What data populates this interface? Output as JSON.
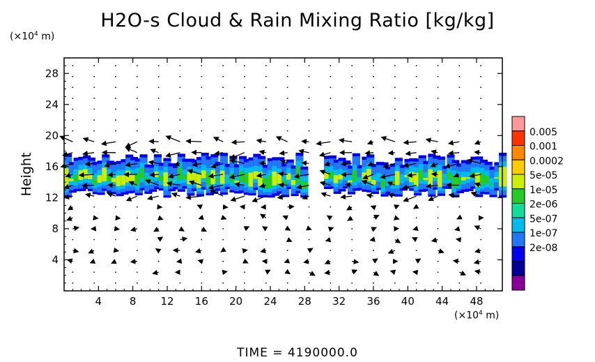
{
  "title": "H2O-s Cloud & Rain Mixing Ratio [kg/kg]",
  "y_unit": {
    "prefix": "(×10",
    "exp": "4",
    "suffix": " m)"
  },
  "x_unit": {
    "prefix": "(×10",
    "exp": "4",
    "suffix": " m)"
  },
  "time_label": "TIME  =  4190000.0",
  "chart_data": {
    "type": "heatmap",
    "title": "H2O-s Cloud & Rain Mixing Ratio [kg/kg]",
    "xlabel": "",
    "ylabel": "Height",
    "x_unit": "×10^4 m",
    "y_unit": "×10^4 m",
    "xlim": [
      0,
      51
    ],
    "ylim": [
      0,
      30
    ],
    "x_ticks": [
      "4",
      "8",
      "12",
      "16",
      "20",
      "24",
      "28",
      "32",
      "36",
      "40",
      "44",
      "48"
    ],
    "y_ticks": [
      "4",
      "8",
      "12",
      "16",
      "20",
      "24",
      "28"
    ],
    "colorbar": {
      "labels": [
        "0.005",
        "0.001",
        "0.0002",
        "5e-05",
        "1e-05",
        "2e-06",
        "5e-07",
        "1e-07",
        "2e-08"
      ],
      "colors": [
        "#ff9999",
        "#ff3300",
        "#ff8800",
        "#ffcc00",
        "#ccee00",
        "#22cc22",
        "#11dd99",
        "#00bbee",
        "#2277ff",
        "#0000ee",
        "#000099",
        "#880099"
      ]
    },
    "cloud_layer": {
      "bottom": 12,
      "top": 17.5,
      "gap_x": [
        28,
        30
      ]
    },
    "grid": false,
    "vector_field": true
  }
}
